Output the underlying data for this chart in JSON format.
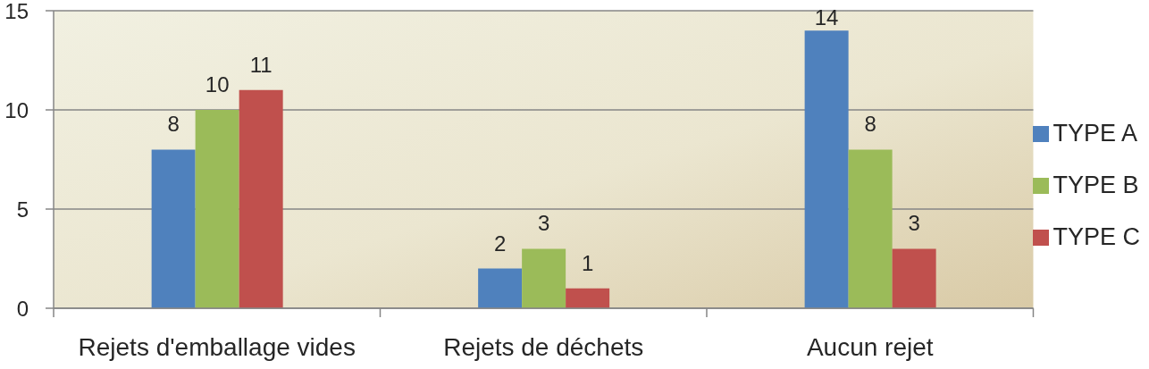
{
  "chart_data": {
    "type": "bar",
    "categories": [
      "Rejets d'emballage vides",
      "Rejets de déchets",
      "Aucun rejet"
    ],
    "series": [
      {
        "name": "TYPE A",
        "color": "#4f81bd",
        "values": [
          8,
          2,
          14
        ]
      },
      {
        "name": "TYPE B",
        "color": "#9bbb59",
        "values": [
          10,
          3,
          8
        ]
      },
      {
        "name": "TYPE C",
        "color": "#c0504d",
        "values": [
          11,
          1,
          3
        ]
      }
    ],
    "ylim": [
      0,
      15
    ],
    "yticks": [
      0,
      5,
      10,
      15
    ],
    "grid": "y",
    "legend": "right",
    "data_labels": true
  }
}
